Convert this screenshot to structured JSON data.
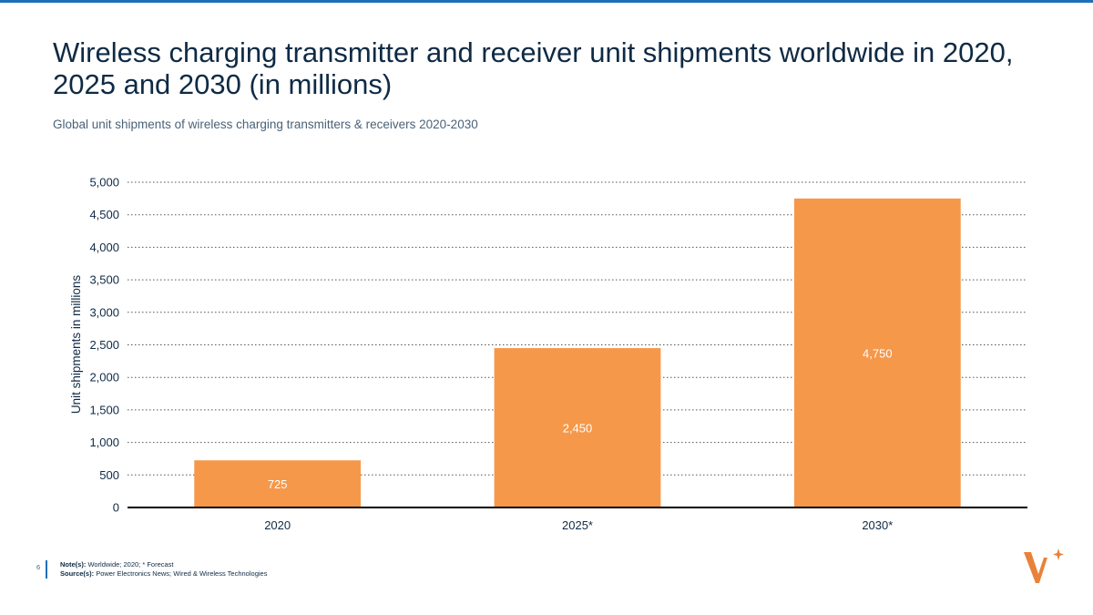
{
  "page": {
    "title": "Wireless charging transmitter and receiver unit shipments worldwide in 2020, 2025 and 2030 (in millions)",
    "subtitle": "Global unit shipments of wireless charging transmitters & receivers 2020-2030",
    "page_number": "6",
    "notes_label": "Note(s):",
    "notes_text": "Worldwide; 2020; * Forecast",
    "source_label": "Source(s):",
    "source_text": "Power Electronics News; Wired & Wireless Technologies"
  },
  "colors": {
    "bar": "#f5984a",
    "accent": "#1f6fb8"
  },
  "chart_data": {
    "type": "bar",
    "categories": [
      "2020",
      "2025*",
      "2030*"
    ],
    "values": [
      725,
      2450,
      4750
    ],
    "value_labels": [
      "725",
      "2,450",
      "4,750"
    ],
    "ylabel": "Unit shipments in millions",
    "ylim": [
      0,
      5000
    ],
    "yticks": [
      0,
      500,
      1000,
      1500,
      2000,
      2500,
      3000,
      3500,
      4000,
      4500,
      5000
    ],
    "ytick_labels": [
      "0",
      "500",
      "1,000",
      "1,500",
      "2,000",
      "2,500",
      "3,000",
      "3,500",
      "4,000",
      "4,500",
      "5,000"
    ],
    "grid": true,
    "legend": "none"
  }
}
